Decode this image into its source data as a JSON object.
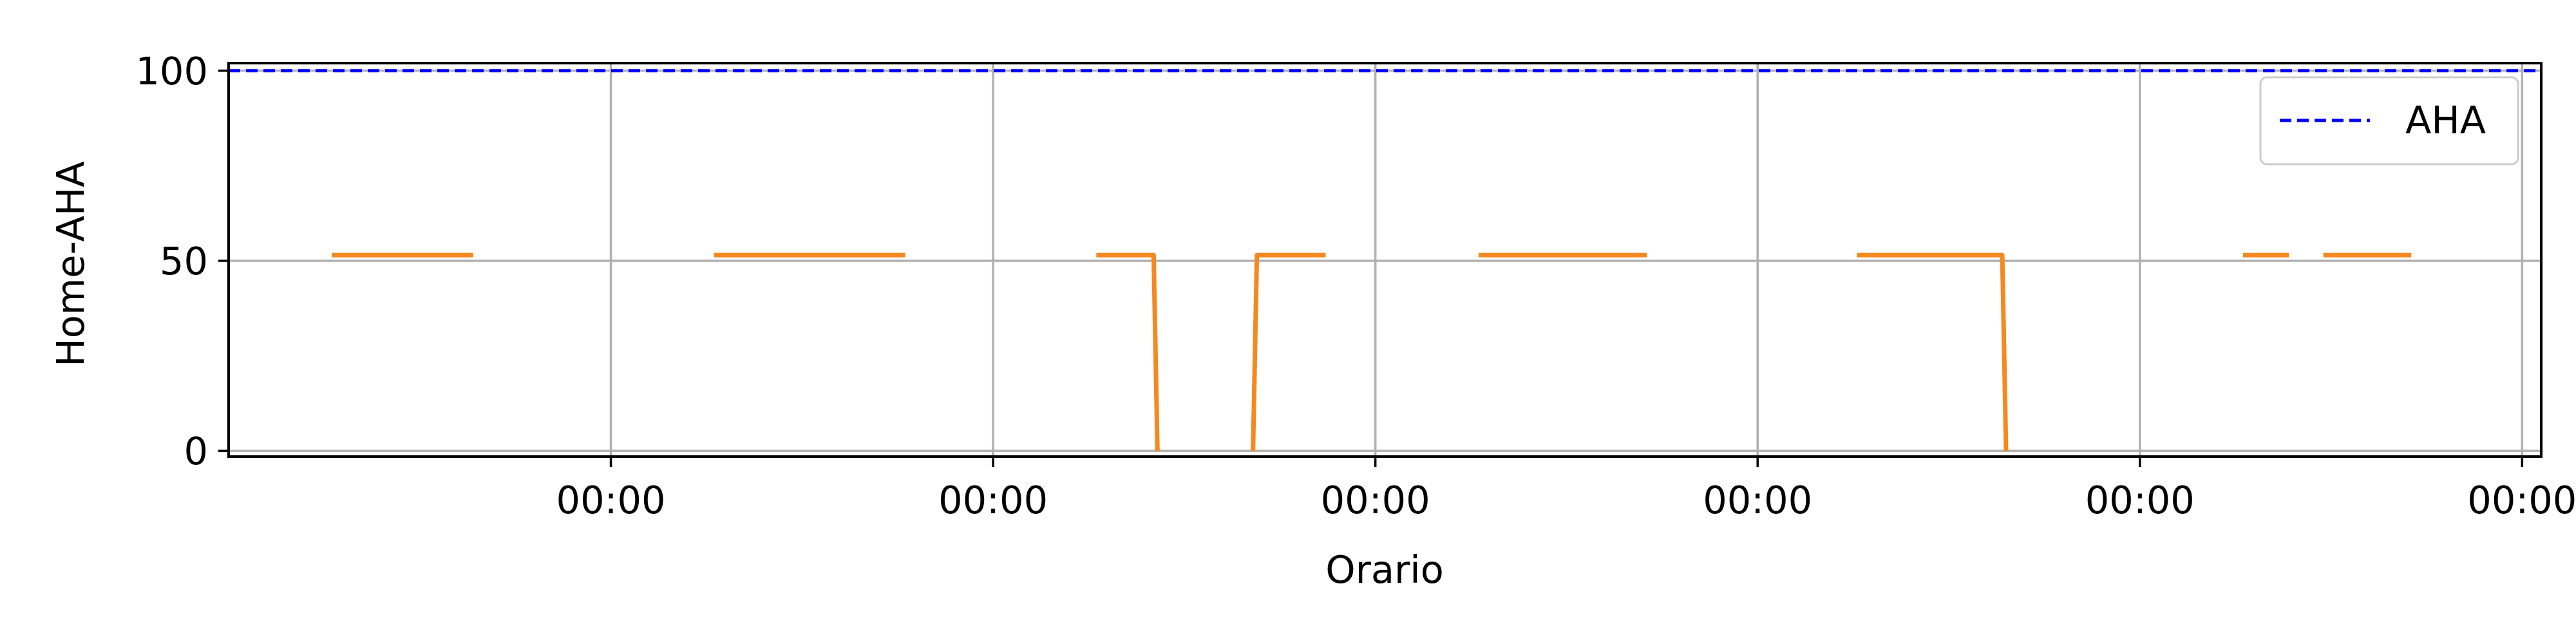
{
  "chart_data": {
    "type": "line",
    "title": "",
    "xlabel": "Orario",
    "ylabel": "Home-AHA",
    "x_tick_labels": [
      "00:00",
      "00:00",
      "00:00",
      "00:00",
      "00:00",
      "00:00"
    ],
    "y_ticks": [
      0,
      50,
      100
    ],
    "ylim": [
      -1.5,
      102
    ],
    "xlim_days": [
      0,
      6.05
    ],
    "grid": true,
    "legend": {
      "placement": "top-right",
      "entries": [
        "AHA"
      ]
    },
    "colors": {
      "series": "#f5891f",
      "reference": "#0000ff",
      "grid": "#b0b0b0"
    },
    "series": [
      {
        "name": "",
        "style": "solid",
        "color": "#f5891f",
        "segments": [
          {
            "x": [
              0.27,
              0.64
            ],
            "y": [
              51.5,
              51.5
            ]
          },
          {
            "x": [
              1.27,
              1.77
            ],
            "y": [
              51.5,
              51.5
            ]
          },
          {
            "x": [
              2.27,
              2.42,
              2.43
            ],
            "y": [
              51.5,
              51.5,
              0
            ]
          },
          {
            "x": [
              2.68,
              2.69,
              2.87
            ],
            "y": [
              0,
              51.5,
              51.5
            ]
          },
          {
            "x": [
              3.27,
              3.71
            ],
            "y": [
              51.5,
              51.5
            ]
          },
          {
            "x": [
              4.26,
              4.64,
              4.65
            ],
            "y": [
              51.5,
              51.5,
              0
            ]
          },
          {
            "x": [
              5.27,
              5.39
            ],
            "y": [
              51.5,
              51.5
            ]
          },
          {
            "x": [
              5.48,
              5.71
            ],
            "y": [
              51.5,
              51.5
            ]
          }
        ]
      },
      {
        "name": "AHA",
        "style": "dashed",
        "color": "#0000ff",
        "segments": [
          {
            "x": [
              0,
              6.05
            ],
            "y": [
              100,
              100
            ]
          }
        ]
      }
    ]
  }
}
